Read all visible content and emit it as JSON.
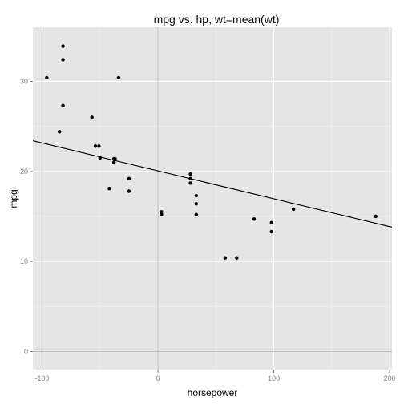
{
  "chart_data": {
    "type": "scatter",
    "title": "mpg vs. hp, wt=mean(wt)",
    "xlabel": "horsepower",
    "ylabel": "mpg",
    "xlim": [
      -108,
      202
    ],
    "ylim": [
      -2,
      36
    ],
    "x_ticks": [
      -100,
      0,
      100,
      200
    ],
    "x_tick_labels": [
      "-100",
      "0",
      "100",
      "200"
    ],
    "y_ticks": [
      0,
      10,
      20,
      30
    ],
    "y_tick_labels": [
      "0",
      "10",
      "20",
      "30"
    ],
    "x_minor_ticks": [
      -50,
      50,
      150
    ],
    "y_minor_ticks": [
      5,
      15,
      25
    ],
    "reference_lines": {
      "x": 0,
      "y": 0
    },
    "grid": true,
    "legend": "none",
    "colors": {
      "panel": "#e5e5e5",
      "grid_major": "#ffffff",
      "grid_minor": "#f2f2f2",
      "ref_line": "#bdbdbd",
      "points": "#000000",
      "fit_line": "#000000"
    },
    "points": [
      {
        "x": -96,
        "y": 30.4
      },
      {
        "x": -82,
        "y": 33.9
      },
      {
        "x": -82,
        "y": 32.4
      },
      {
        "x": -82,
        "y": 27.3
      },
      {
        "x": -85,
        "y": 24.4
      },
      {
        "x": -57,
        "y": 26.0
      },
      {
        "x": -54,
        "y": 22.8
      },
      {
        "x": -51,
        "y": 22.8
      },
      {
        "x": -50,
        "y": 21.5
      },
      {
        "x": -38,
        "y": 21.4
      },
      {
        "x": -38,
        "y": 21.0
      },
      {
        "x": -37,
        "y": 21.4
      },
      {
        "x": -42,
        "y": 18.1
      },
      {
        "x": -34,
        "y": 30.4
      },
      {
        "x": -25,
        "y": 19.2
      },
      {
        "x": -25,
        "y": 17.8
      },
      {
        "x": 3,
        "y": 15.5
      },
      {
        "x": 3,
        "y": 15.2
      },
      {
        "x": 28,
        "y": 19.7
      },
      {
        "x": 28,
        "y": 19.2
      },
      {
        "x": 28,
        "y": 18.7
      },
      {
        "x": 33,
        "y": 17.3
      },
      {
        "x": 33,
        "y": 16.4
      },
      {
        "x": 33,
        "y": 15.2
      },
      {
        "x": 58,
        "y": 10.4
      },
      {
        "x": 68,
        "y": 10.4
      },
      {
        "x": 83,
        "y": 14.7
      },
      {
        "x": 98,
        "y": 14.3
      },
      {
        "x": 98,
        "y": 13.3
      },
      {
        "x": 117,
        "y": 15.8
      },
      {
        "x": 188,
        "y": 15.0
      }
    ],
    "fit_line": {
      "x": [
        -108,
        202
      ],
      "y": [
        23.4,
        13.8
      ]
    }
  }
}
